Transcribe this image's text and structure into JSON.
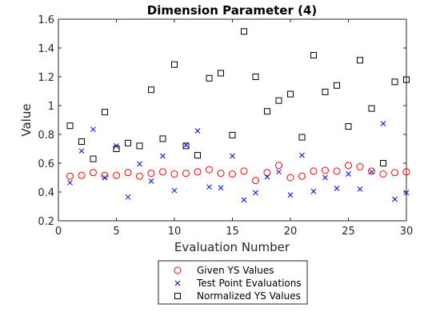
{
  "chart_data": {
    "type": "scatter",
    "title": "Dimension Parameter (4)",
    "xlabel": "Evaluation Number",
    "ylabel": "Value",
    "xlim": [
      0,
      30
    ],
    "ylim": [
      0.2,
      1.6
    ],
    "xticks": [
      "0",
      "5",
      "10",
      "15",
      "20",
      "25",
      "30"
    ],
    "yticks": [
      "0.2",
      "0.4",
      "0.6",
      "0.8",
      "1",
      "1.2",
      "1.4",
      "1.6"
    ],
    "grid": false,
    "legend_position": "bottom-outside",
    "x": [
      1,
      2,
      3,
      4,
      5,
      6,
      7,
      8,
      9,
      10,
      11,
      12,
      13,
      14,
      15,
      16,
      17,
      18,
      19,
      20,
      21,
      22,
      23,
      24,
      25,
      26,
      27,
      28,
      29,
      30
    ],
    "series": [
      {
        "name": "Given YS Values",
        "marker": "circle",
        "color": "#ff0000",
        "values": [
          0.51,
          0.515,
          0.535,
          0.515,
          0.515,
          0.535,
          0.51,
          0.53,
          0.54,
          0.525,
          0.53,
          0.54,
          0.555,
          0.53,
          0.525,
          0.545,
          0.48,
          0.535,
          0.585,
          0.5,
          0.51,
          0.545,
          0.55,
          0.545,
          0.585,
          0.575,
          0.545,
          0.525,
          0.535,
          0.54
        ]
      },
      {
        "name": "Test Point Evaluations",
        "marker": "x",
        "color": "#0000ff",
        "values": [
          0.465,
          0.685,
          0.835,
          0.5,
          0.72,
          0.365,
          0.595,
          0.475,
          0.65,
          0.41,
          0.725,
          0.825,
          0.435,
          0.43,
          0.65,
          0.345,
          0.395,
          0.505,
          0.54,
          0.38,
          0.655,
          0.405,
          0.5,
          0.425,
          0.525,
          0.42,
          0.54,
          0.875,
          0.35,
          0.395
        ]
      },
      {
        "name": "Normalized YS Values",
        "marker": "square",
        "color": "#000000",
        "values": [
          0.86,
          0.75,
          0.63,
          0.955,
          0.7,
          0.74,
          0.72,
          1.11,
          0.77,
          1.285,
          0.72,
          0.655,
          1.19,
          1.225,
          0.795,
          1.515,
          1.2,
          0.96,
          1.035,
          1.08,
          0.78,
          1.35,
          1.095,
          1.14,
          0.855,
          1.315,
          0.98,
          0.6,
          1.165,
          1.18
        ]
      }
    ]
  }
}
